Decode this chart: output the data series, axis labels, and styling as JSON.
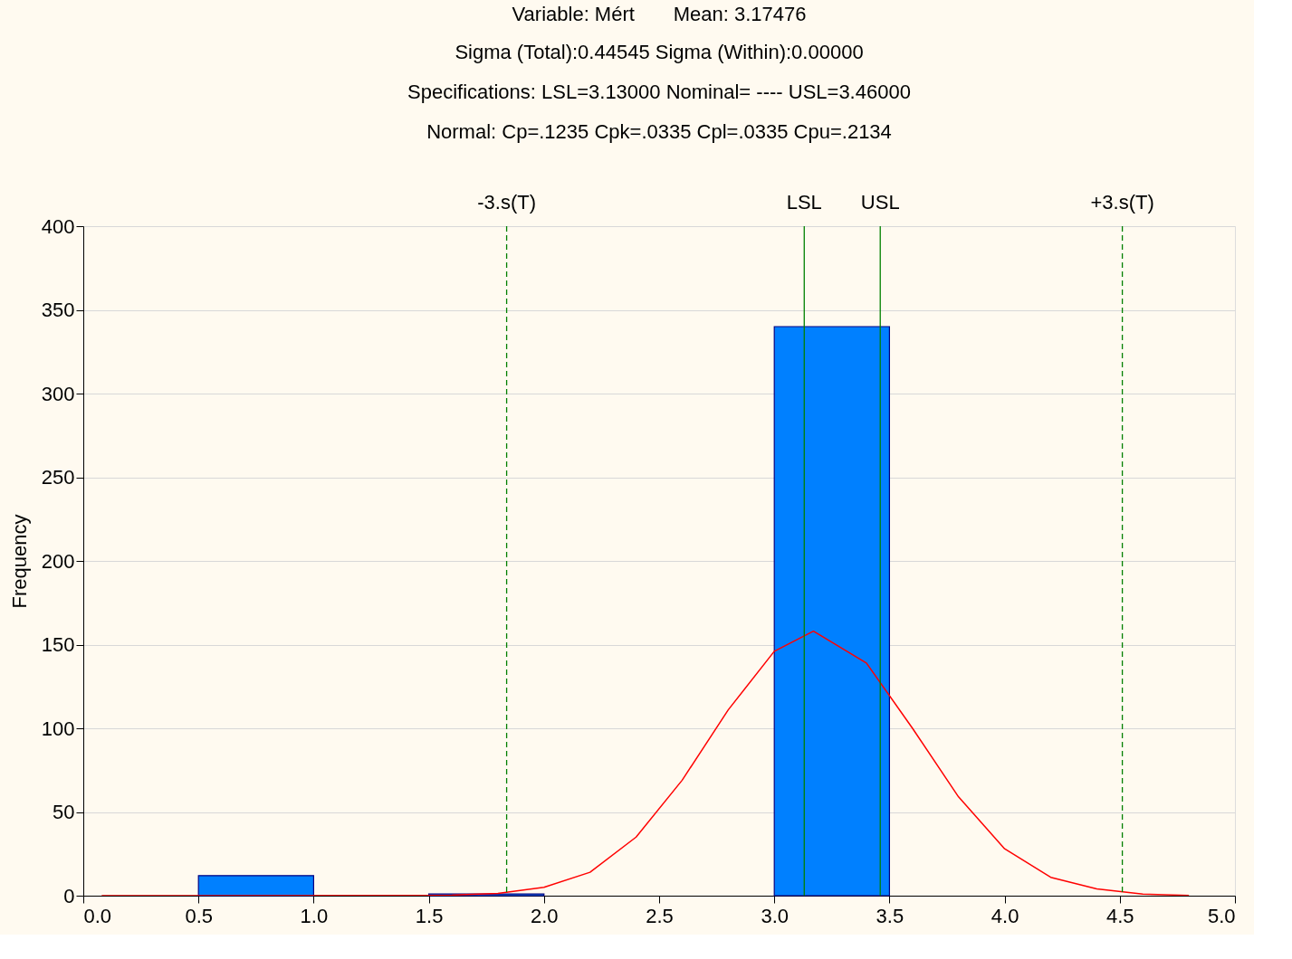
{
  "chart_data": {
    "type": "histogram",
    "title": "Variable: Mért       Mean: 3.17476",
    "annotations": [
      "Sigma (Total):0.44545 Sigma (Within):0.00000",
      "Specifications: LSL=3.13000 Nominal= ----   USL=3.46000",
      "Normal: Cp=.1235 Cpk=.0335 Cpl=.0335 Cpu=.2134"
    ],
    "ylabel": "Frequency",
    "bins": [
      0.0,
      0.5,
      1.0,
      1.5,
      2.0,
      2.5,
      3.0,
      3.5,
      4.0,
      4.5,
      5.0
    ],
    "values": [
      0,
      12,
      0,
      1,
      0,
      0,
      340,
      0,
      0,
      0
    ],
    "color": "#0080ff",
    "series": [
      {
        "type": "line",
        "color": "#ff0000",
        "x": [
          0.08,
          1.5,
          1.6,
          1.8,
          2.0,
          2.2,
          2.4,
          2.6,
          2.8,
          3.0,
          3.17,
          3.4,
          3.6,
          3.8,
          4.0,
          4.2,
          4.4,
          4.6,
          4.8
        ],
        "values": [
          0,
          0.1,
          0.3,
          1.4,
          5,
          14,
          35,
          69,
          111,
          146,
          158,
          139,
          100,
          59,
          28,
          11,
          4,
          1,
          0.2
        ]
      }
    ],
    "ref_lines": [
      {
        "axis": "x",
        "value": 1.838,
        "label": "-3.s(T)",
        "color": "#008000",
        "line_style": "dashed"
      },
      {
        "axis": "x",
        "value": 3.13,
        "label": "LSL",
        "color": "#008000",
        "line_style": "solid"
      },
      {
        "axis": "x",
        "value": 3.46,
        "label": "USL",
        "color": "#008000",
        "line_style": "solid"
      },
      {
        "axis": "x",
        "value": 4.511,
        "label": "+3.s(T)",
        "color": "#008000",
        "line_style": "dashed"
      }
    ],
    "xlim": [
      0.0,
      5.0
    ],
    "xticks": [
      {
        "value": 0,
        "label": "0.0"
      },
      0.5,
      {
        "value": 1,
        "label": "1.0"
      },
      1.5,
      {
        "value": 2,
        "label": "2.0"
      },
      2.5,
      {
        "value": 3,
        "label": "3.0"
      },
      3.5,
      {
        "value": 4,
        "label": "4.0"
      },
      4.5,
      {
        "value": 5,
        "label": "5.0"
      }
    ],
    "ylim": [
      0,
      400
    ],
    "yticks": [
      0,
      50,
      100,
      150,
      200,
      250,
      300,
      350,
      400
    ],
    "grid": "y"
  }
}
